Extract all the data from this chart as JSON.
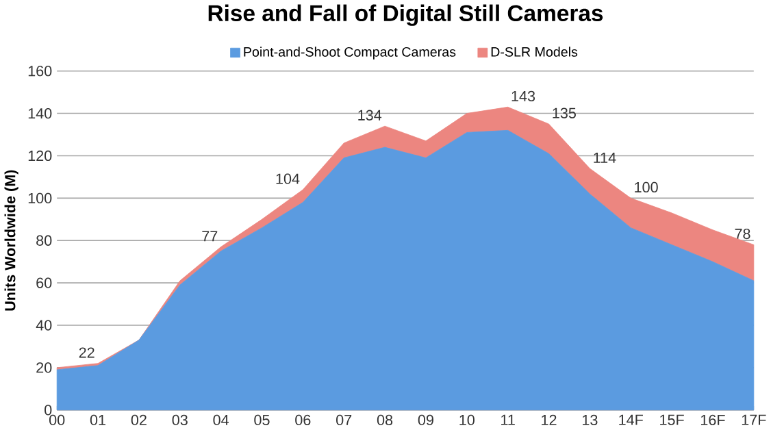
{
  "chart_data": {
    "type": "area",
    "title": "Rise and Fall of Digital Still Cameras",
    "ylabel": "Units Worldwide (M)",
    "categories": [
      "00",
      "01",
      "02",
      "03",
      "04",
      "05",
      "06",
      "07",
      "08",
      "09",
      "10",
      "11",
      "12",
      "13",
      "14F",
      "15F",
      "16F",
      "17F"
    ],
    "stacked": true,
    "series": [
      {
        "name": "Point-and-Shoot Compact Cameras",
        "color": "#5b9be0",
        "values": [
          19,
          21,
          33,
          59,
          75,
          86,
          98,
          119,
          124,
          119,
          131,
          132,
          121,
          102,
          86,
          78,
          70,
          61
        ]
      },
      {
        "name": "D-SLR Models",
        "color": "#ec8680",
        "values": [
          1,
          1,
          0,
          2,
          2,
          4,
          6,
          7,
          10,
          8,
          9,
          11,
          14,
          12,
          14,
          15,
          15,
          17
        ]
      }
    ],
    "ylim": [
      0,
      160
    ],
    "yticks": [
      0,
      20,
      40,
      60,
      80,
      100,
      120,
      140,
      160
    ],
    "grid": "y",
    "legend": "top",
    "annotations": [
      {
        "text": "22",
        "x": "01",
        "y": 22
      },
      {
        "text": "77",
        "x": "04",
        "y": 77
      },
      {
        "text": "104",
        "x": "06",
        "y": 104
      },
      {
        "text": "134",
        "x": "08",
        "y": 134
      },
      {
        "text": "143",
        "x": "11",
        "y": 143
      },
      {
        "text": "135",
        "x": "12",
        "y": 135
      },
      {
        "text": "114",
        "x": "13",
        "y": 114
      },
      {
        "text": "100",
        "x": "14F",
        "y": 100
      },
      {
        "text": "78",
        "x": "17F",
        "y": 78
      }
    ]
  }
}
